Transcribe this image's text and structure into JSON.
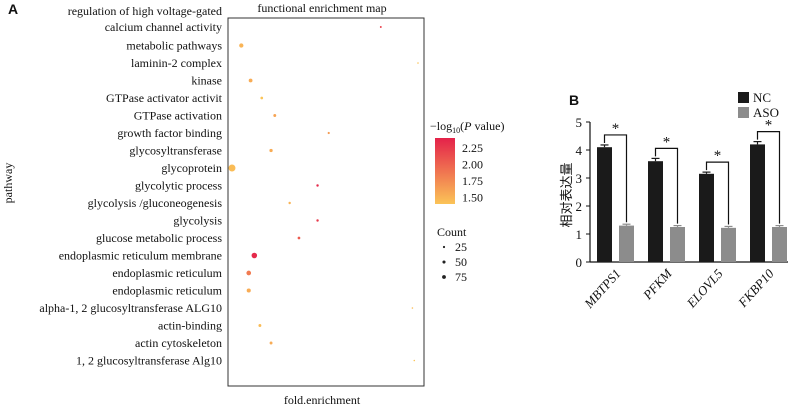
{
  "chart_data": [
    {
      "panel": "A",
      "type": "scatter",
      "title": "functional enrichment map",
      "xlabel": "fold.enrichment",
      "ylabel": "pathway",
      "categories": [
        "regulation of high voltage-gated calcium channel activity",
        "metabolic pathways",
        "laminin-2 complex",
        "kinase",
        "GTPase activator activit",
        "GTPase activation",
        "growth factor binding",
        "glycosyltransferase",
        "glycoprotein",
        "glycolytic process",
        "glycolysis /gluconeogenesis",
        "glycolysis",
        "glucose metabolic process",
        "endoplasmic reticulum membrane",
        "endoplasmic reticulum",
        "endoplasmic reticulum",
        "alpha-1, 2 glucosyltransferase ALG10",
        "actin-binding",
        "actin cytoskeleton",
        "1, 2 glucosyltransferase Alg10"
      ],
      "points": [
        {
          "x": 0.8,
          "p": 2.2,
          "count": 3
        },
        {
          "x": 0.05,
          "p": 1.5,
          "count": 15
        },
        {
          "x": 1.0,
          "p": 1.35,
          "count": 2
        },
        {
          "x": 0.1,
          "p": 1.55,
          "count": 12
        },
        {
          "x": 0.16,
          "p": 1.4,
          "count": 6
        },
        {
          "x": 0.23,
          "p": 1.6,
          "count": 7
        },
        {
          "x": 0.52,
          "p": 1.65,
          "count": 4
        },
        {
          "x": 0.21,
          "p": 1.55,
          "count": 9
        },
        {
          "x": 0.0,
          "p": 1.45,
          "count": 40
        },
        {
          "x": 0.46,
          "p": 2.35,
          "count": 5
        },
        {
          "x": 0.31,
          "p": 1.5,
          "count": 5
        },
        {
          "x": 0.46,
          "p": 2.25,
          "count": 5
        },
        {
          "x": 0.36,
          "p": 2.05,
          "count": 6
        },
        {
          "x": 0.12,
          "p": 2.35,
          "count": 25
        },
        {
          "x": 0.09,
          "p": 1.85,
          "count": 18
        },
        {
          "x": 0.09,
          "p": 1.55,
          "count": 14
        },
        {
          "x": 0.97,
          "p": 1.45,
          "count": 2
        },
        {
          "x": 0.15,
          "p": 1.45,
          "count": 7
        },
        {
          "x": 0.21,
          "p": 1.55,
          "count": 7
        },
        {
          "x": 0.98,
          "p": 1.4,
          "count": 2
        }
      ],
      "color_legend": {
        "title_prefix": "−log",
        "title_sub": "10",
        "title_open": "(",
        "title_var": "P",
        "title_suffix": " value)",
        "ticks": [
          "2.25",
          "2.00",
          "1.75",
          "1.50"
        ],
        "low_color": "#fbc457",
        "high_color": "#e4224a"
      },
      "size_legend": {
        "title": "Count",
        "ticks": [
          "25",
          "50",
          "75"
        ]
      }
    },
    {
      "panel": "B",
      "type": "bar",
      "ylabel": "相对表达量",
      "ylim": [
        0,
        5
      ],
      "yticks": [
        "0",
        "1",
        "2",
        "3",
        "4",
        "5"
      ],
      "categories": [
        "MBTPS1",
        "PFKM",
        "ELOVL5",
        "FKBP10"
      ],
      "series": [
        {
          "name": "NC",
          "values": [
            4.1,
            3.6,
            3.15,
            4.2
          ],
          "errors": [
            0.08,
            0.1,
            0.06,
            0.1
          ],
          "color": "#1a1a1a"
        },
        {
          "name": "ASO",
          "values": [
            1.3,
            1.25,
            1.22,
            1.25
          ],
          "errors": [
            0.05,
            0.05,
            0.05,
            0.05
          ],
          "color": "#8c8c8c"
        }
      ],
      "significance": [
        "*",
        "*",
        "*",
        "*"
      ]
    }
  ]
}
